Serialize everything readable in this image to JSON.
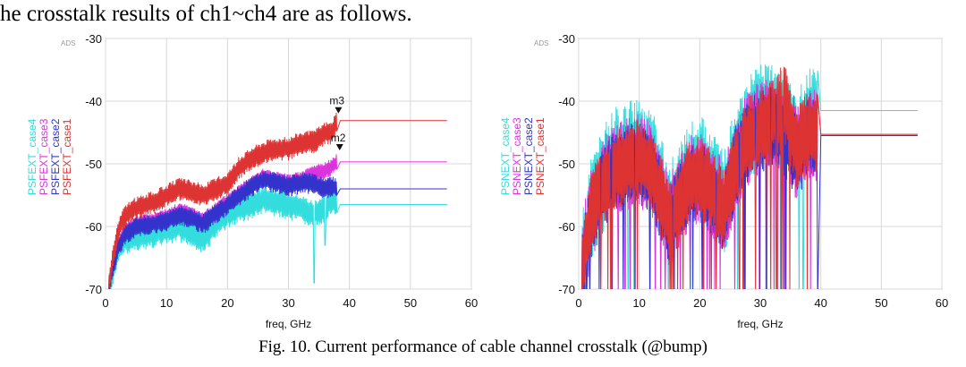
{
  "document": {
    "intro_text": "he crosstalk results of ch1~ch4 are as follows.",
    "caption": "Fig. 10. Current performance of cable channel crosstalk (@bump)"
  },
  "chart_data": [
    {
      "type": "line",
      "watermark": "ADS",
      "xlabel": "freq, GHz",
      "ylabel": "",
      "xlim": [
        0,
        60
      ],
      "ylim": [
        -70,
        -30
      ],
      "xticks": [
        0,
        10,
        20,
        30,
        40,
        50,
        60
      ],
      "yticks": [
        -30,
        -40,
        -50,
        -60,
        -70
      ],
      "grid": true,
      "legend_position": "left, rotated vertical",
      "series": [
        {
          "name": "PSFEXT_case4",
          "color": "#33dddd",
          "plateau_from_x": 39,
          "plateau_to_x": 56,
          "plateau_y": -56.5,
          "envelope": {
            "x": [
              0.5,
              1,
              2,
              3,
              5,
              8,
              10,
              12,
              14,
              16,
              18,
              20,
              22,
              24,
              26,
              28,
              30,
              32,
              34,
              36,
              37,
              38
            ],
            "y": [
              -70,
              -68,
              -64,
              -62,
              -61.5,
              -61,
              -60.5,
              -60,
              -60.8,
              -62,
              -59.5,
              -58,
              -57,
              -56.5,
              -55.5,
              -56,
              -56.5,
              -57,
              -58,
              -56.8,
              -55.5,
              -56.5
            ]
          },
          "ripple": 2.5,
          "deep_notches": [
            {
              "x": 34.2,
              "y": -69
            },
            {
              "x": 36,
              "y": -63
            }
          ]
        },
        {
          "name": "PSFEXT_case3",
          "color": "#dd33dd",
          "plateau_from_x": 39,
          "plateau_to_x": 56,
          "plateau_y": -49.7,
          "envelope": {
            "x": [
              0.5,
              1,
              2,
              3,
              5,
              8,
              10,
              12,
              14,
              16,
              18,
              20,
              22,
              24,
              26,
              28,
              30,
              32,
              34,
              36,
              37,
              38
            ],
            "y": [
              -70,
              -67,
              -63,
              -61,
              -59.5,
              -59,
              -58.5,
              -57.5,
              -58,
              -59,
              -57.5,
              -56,
              -54.5,
              -53,
              -52,
              -52.5,
              -53,
              -52.5,
              -51.5,
              -51,
              -50.5,
              -49.7
            ]
          },
          "ripple": 1.5
        },
        {
          "name": "PSFEXT_case2",
          "color": "#3333cc",
          "plateau_from_x": 39,
          "plateau_to_x": 56,
          "plateau_y": -54,
          "envelope": {
            "x": [
              0.5,
              1,
              2,
              3,
              5,
              8,
              10,
              12,
              14,
              16,
              18,
              20,
              22,
              24,
              26,
              28,
              30,
              32,
              34,
              36,
              37,
              38
            ],
            "y": [
              -70,
              -67.5,
              -63.5,
              -61.5,
              -60,
              -59.5,
              -59,
              -58,
              -58.5,
              -59.5,
              -58,
              -56.5,
              -55,
              -53.5,
              -52.5,
              -53,
              -53.5,
              -53,
              -53,
              -54,
              -53.5,
              -54
            ]
          },
          "ripple": 1.8
        },
        {
          "name": "PSFEXT_case1",
          "color": "#dd3333",
          "plateau_from_x": 39,
          "plateau_to_x": 56,
          "plateau_y": -43.1,
          "envelope": {
            "x": [
              0.5,
              1,
              2,
              3,
              5,
              8,
              10,
              12,
              14,
              16,
              18,
              20,
              22,
              24,
              26,
              28,
              30,
              32,
              34,
              36,
              37,
              38
            ],
            "y": [
              -70,
              -66,
              -61,
              -58.5,
              -57,
              -56,
              -55,
              -54,
              -54.3,
              -55,
              -54,
              -53,
              -50.5,
              -49,
              -48,
              -47.5,
              -47.5,
              -46.5,
              -46.5,
              -45,
              -45,
              -43.1
            ]
          },
          "ripple": 2.0
        }
      ],
      "markers": [
        {
          "label": "m3",
          "x": 38.2,
          "y": -42.1
        },
        {
          "label": "m2",
          "x": 38.4,
          "y": -48.0
        }
      ]
    },
    {
      "type": "line",
      "watermark": "ADS",
      "xlabel": "freq, GHz",
      "ylabel": "",
      "xlim": [
        0,
        60
      ],
      "ylim": [
        -70,
        -30
      ],
      "xticks": [
        0,
        10,
        20,
        30,
        40,
        50,
        60
      ],
      "yticks": [
        -30,
        -40,
        -50,
        -60,
        -70
      ],
      "grid": true,
      "legend_position": "left, rotated vertical",
      "series": [
        {
          "name": "PSNEXT_case4",
          "color": "#33dddd",
          "plateau_from_x": 40,
          "plateau_to_x": 56,
          "plateau_y": -41.5,
          "envelope": {
            "x": [
              0.5,
              1,
              2,
              4,
              6,
              8,
              10,
              12,
              14,
              15,
              16,
              18,
              20,
              22,
              24,
              26,
              28,
              30,
              32,
              34,
              36,
              38,
              39.5
            ],
            "y": [
              -67,
              -62,
              -57,
              -52,
              -49,
              -48,
              -47.7,
              -49,
              -55,
              -58,
              -56,
              -52,
              -50,
              -53,
              -56,
              -48,
              -44,
              -42,
              -41.5,
              -43,
              -47,
              -42.5,
              -42
            ]
          },
          "ripple": 9
        },
        {
          "name": "PSNEXT_case3",
          "color": "#dd33dd",
          "plateau_from_x": 40,
          "plateau_to_x": 56,
          "plateau_y": -45.3,
          "envelope": {
            "x": [
              0.5,
              1,
              2,
              4,
              6,
              8,
              10,
              12,
              14,
              15,
              16,
              18,
              20,
              22,
              24,
              26,
              28,
              30,
              32,
              34,
              36,
              38,
              39.5
            ],
            "y": [
              -67,
              -63,
              -58,
              -53,
              -50.5,
              -49.5,
              -49,
              -50.5,
              -56,
              -59,
              -57,
              -53,
              -51.5,
              -54,
              -57,
              -49.5,
              -45.5,
              -44,
              -43,
              -44.5,
              -48,
              -45,
              -45.3
            ]
          },
          "ripple": 8
        },
        {
          "name": "PSNEXT_case2",
          "color": "#3333cc",
          "plateau_from_x": 40,
          "plateau_to_x": 56,
          "plateau_y": -45.5,
          "envelope": {
            "x": [
              0.5,
              1,
              2,
              4,
              6,
              8,
              10,
              12,
              14,
              15,
              16,
              18,
              20,
              22,
              24,
              26,
              28,
              30,
              32,
              34,
              36,
              38,
              39.5
            ],
            "y": [
              -67.5,
              -63.5,
              -58.5,
              -53.5,
              -51,
              -50,
              -49.5,
              -51,
              -56.5,
              -59.5,
              -57.5,
              -53.5,
              -52,
              -54.5,
              -57.5,
              -50,
              -46,
              -44.5,
              -43.5,
              -45,
              -48.5,
              -45.5,
              -45.5
            ]
          },
          "ripple": 7
        },
        {
          "name": "PSNEXT_case1",
          "color": "#dd3333",
          "plateau_from_x": 40,
          "plateau_to_x": 56,
          "plateau_y": -45.3,
          "envelope": {
            "x": [
              0.5,
              1,
              2,
              4,
              6,
              8,
              10,
              12,
              14,
              15,
              16,
              18,
              20,
              22,
              24,
              26,
              28,
              30,
              32,
              34,
              36,
              38,
              39.5
            ],
            "y": [
              -67,
              -63,
              -58,
              -53,
              -50.5,
              -49.5,
              -49,
              -50.5,
              -56,
              -59,
              -57,
              -53,
              -51.5,
              -54,
              -57,
              -49.5,
              -45.5,
              -44,
              -42.5,
              -40,
              -47,
              -44.5,
              -45.3
            ]
          },
          "ripple": 7
        }
      ],
      "markers": []
    }
  ]
}
